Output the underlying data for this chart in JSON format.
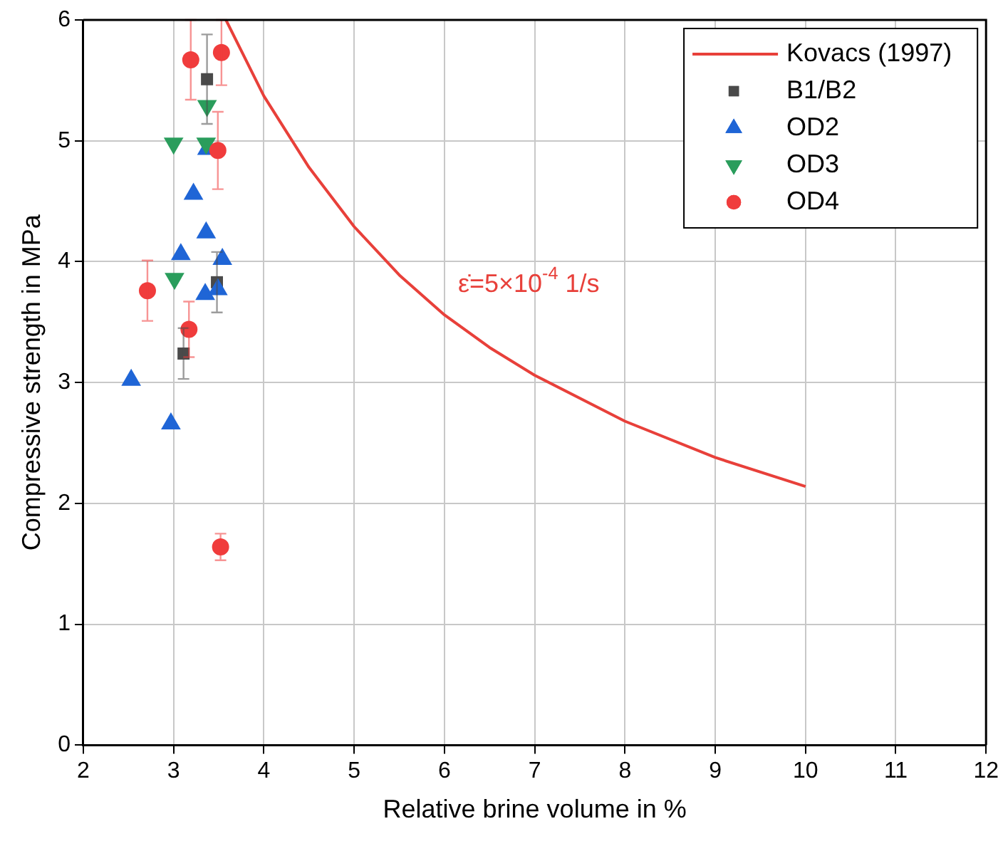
{
  "chart_data": {
    "type": "scatter",
    "xlabel": "Relative brine volume in %",
    "ylabel": "Compressive strength in MPa",
    "xlim": [
      2,
      12
    ],
    "xticks": [
      2,
      3,
      4,
      5,
      6,
      7,
      8,
      9,
      10,
      11,
      12
    ],
    "ylim": [
      0,
      6
    ],
    "yticks": [
      0,
      1,
      2,
      3,
      4,
      5,
      6
    ],
    "grid": true,
    "legend": "top right",
    "series": [
      {
        "name": "Kovacs (1997)",
        "type": "line",
        "color": "#e8403a",
        "marker": "none",
        "line_style": "solid",
        "x": [
          3.58,
          4,
          4.5,
          5,
          5.5,
          6,
          6.5,
          7,
          8,
          9,
          10
        ],
        "values": [
          6.0,
          5.37,
          4.78,
          4.29,
          3.89,
          3.56,
          3.29,
          3.06,
          2.68,
          2.38,
          2.14
        ]
      },
      {
        "name": "B1/B2",
        "color": "#4a4a4a",
        "marker": "square",
        "x": [
          3.37,
          3.48,
          3.11
        ],
        "values": [
          5.51,
          3.83,
          3.24
        ],
        "errors": [
          0.37,
          0.25,
          0.21
        ]
      },
      {
        "name": "OD2",
        "color": "#1f65d6",
        "marker": "triangle",
        "x": [
          3.22,
          3.36,
          3.08,
          3.54,
          3.35,
          3.49,
          3.37,
          2.53,
          2.97
        ],
        "values": [
          4.56,
          4.24,
          4.06,
          4.02,
          3.73,
          3.77,
          4.93,
          3.02,
          2.66
        ]
      },
      {
        "name": "OD3",
        "color": "#2a9d5c",
        "marker": "triangle-down",
        "x": [
          3.37,
          3.0,
          3.36,
          3.01
        ],
        "values": [
          5.29,
          4.98,
          4.98,
          3.86
        ]
      },
      {
        "name": "OD4",
        "color": "#f03c3c",
        "marker": "circle",
        "x": [
          3.19,
          3.53,
          3.49,
          2.71,
          3.17,
          3.52
        ],
        "values": [
          5.67,
          5.73,
          4.92,
          3.76,
          3.44,
          1.64
        ],
        "errors": [
          0.33,
          0.27,
          0.32,
          0.25,
          0.23,
          0.11
        ]
      }
    ],
    "annotations": [
      "ε̇=5×10$^{-4}$ 1/s"
    ]
  }
}
